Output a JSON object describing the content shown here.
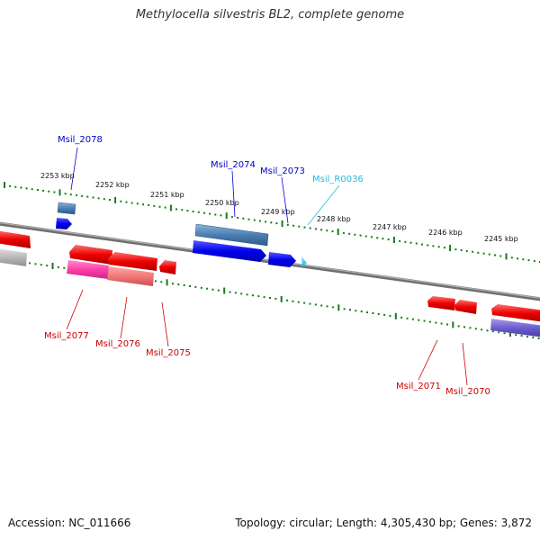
{
  "title": "Methylocella silvestris BL2, complete genome",
  "footer": {
    "accession": "Accession: NC_011666",
    "summary": "Topology: circular; Length: 4,305,430 bp; Genes: 3,872"
  },
  "colors": {
    "forward_gene": "#0000ee",
    "reverse_gene": "#ee0000",
    "rna_gene": "#22ccee",
    "forward_label": "#0000cc",
    "reverse_label": "#cc0000",
    "rna_label": "#22bbdd",
    "scale_ticks": "#1a7a1a",
    "backbone": "#888888"
  },
  "scale_labels": [
    "2253 kbp",
    "2252 kbp",
    "2251 kbp",
    "2250 kbp",
    "2249 kbp",
    "2248 kbp",
    "2247 kbp",
    "2246 kbp",
    "2245 kbp"
  ],
  "gene_labels": {
    "msil_2078": "Msil_2078",
    "msil_2074": "Msil_2074",
    "msil_2073": "Msil_2073",
    "msil_r0036": "Msil_R0036",
    "msil_2077": "Msil_2077",
    "msil_2076": "Msil_2076",
    "msil_2075": "Msil_2075",
    "msil_2071": "Msil_2071",
    "msil_2070": "Msil_2070"
  }
}
